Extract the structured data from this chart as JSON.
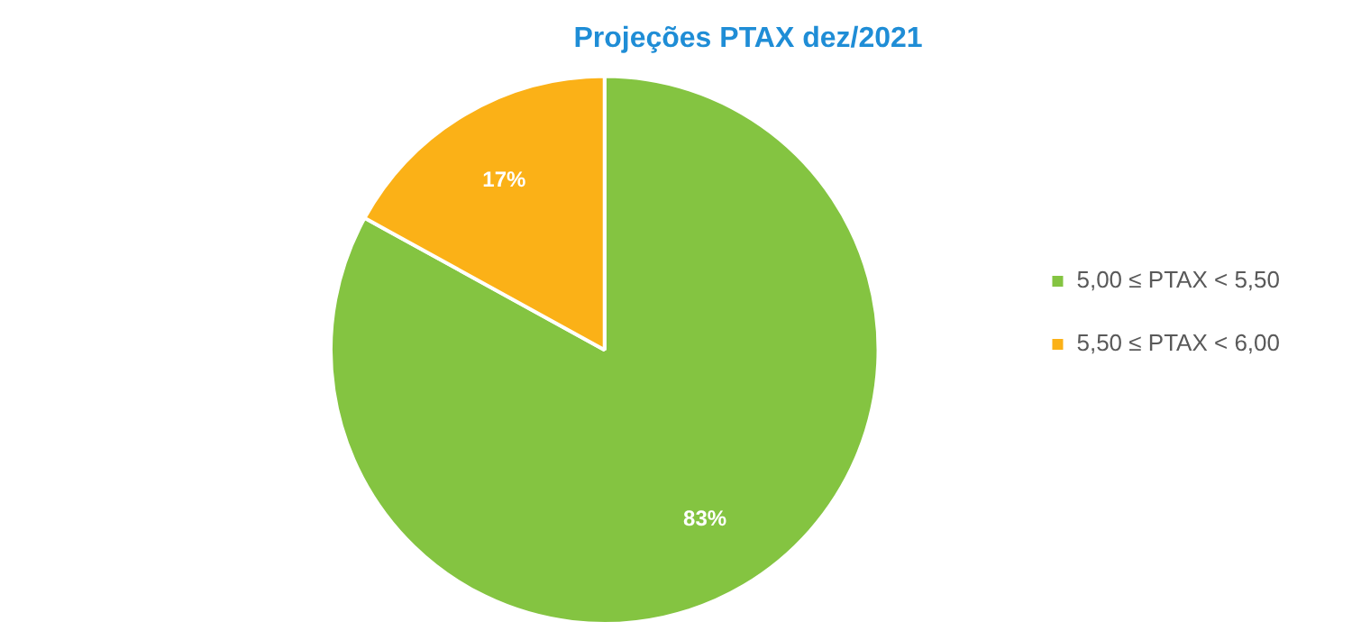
{
  "chart_data": {
    "type": "pie",
    "title": "Projeções PTAX dez/2021",
    "categories": [
      "5,00 ≤ PTAX < 5,50",
      "5,50 ≤ PTAX < 6,00"
    ],
    "values": [
      83,
      17
    ],
    "colors": [
      "#84c441",
      "#fbb117"
    ],
    "value_labels": [
      "83%",
      "17%"
    ],
    "legend": "right"
  }
}
